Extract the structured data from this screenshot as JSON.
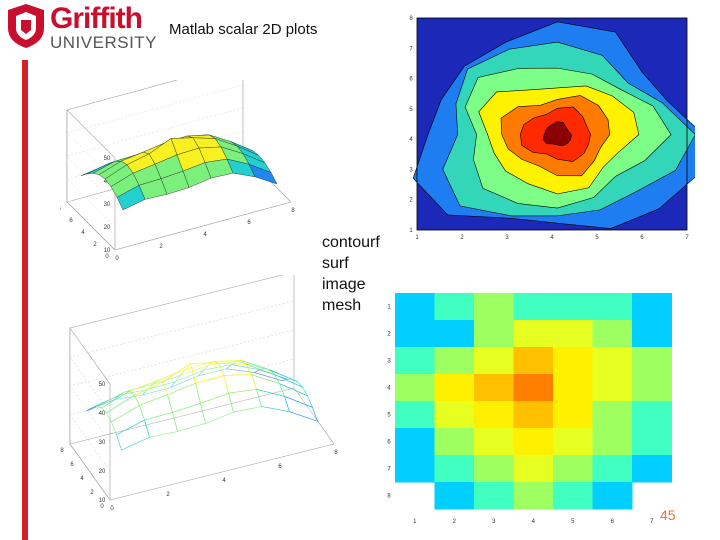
{
  "header": {
    "logo_line1": "Griffith",
    "logo_line2": "UNIVERSITY",
    "title": "Matlab scalar 2D plots"
  },
  "methods": [
    "contourf",
    "surf",
    "image",
    "mesh"
  ],
  "page_number": "45",
  "colors": {
    "brand_red": "#d4202a",
    "page_number": "#e07a30"
  },
  "chart_data": [
    {
      "id": "surf",
      "type": "surface",
      "z_ticks": [
        "10",
        "20",
        "30",
        "40",
        "50"
      ],
      "x_ticks": [
        "0",
        "2",
        "4",
        "6",
        "8"
      ],
      "y_ticks": [
        "0",
        "2",
        "4",
        "6",
        "8"
      ],
      "zlim": [
        10,
        50
      ]
    },
    {
      "id": "contourf",
      "type": "filled-contour",
      "x_ticks": [
        "1",
        "2",
        "3",
        "4",
        "5",
        "6",
        "7"
      ],
      "y_ticks": [
        "1",
        "2",
        "3",
        "4",
        "5",
        "6",
        "7",
        "8"
      ],
      "levels": 6,
      "colormap": [
        "#1c28b8",
        "#1e7df0",
        "#33d6b8",
        "#7dff87",
        "#fff200",
        "#ff7b00",
        "#ff2a00",
        "#8b0000"
      ]
    },
    {
      "id": "mesh",
      "type": "mesh",
      "z_ticks": [
        "10",
        "20",
        "30",
        "40",
        "50"
      ],
      "x_ticks": [
        "0",
        "2",
        "4",
        "6",
        "8"
      ],
      "y_ticks": [
        "0",
        "2",
        "4",
        "6",
        "8"
      ],
      "zlim": [
        10,
        50
      ]
    },
    {
      "id": "image",
      "type": "heatmap",
      "x_ticks": [
        "1",
        "2",
        "3",
        "4",
        "5",
        "6",
        "7"
      ],
      "y_ticks": [
        "1",
        "2",
        "3",
        "4",
        "5",
        "6",
        "7",
        "8"
      ],
      "rows": [
        [
          2,
          3,
          4,
          3,
          3,
          3,
          2
        ],
        [
          2,
          2,
          4,
          5,
          5,
          4,
          2
        ],
        [
          3,
          4,
          5,
          7,
          6,
          5,
          4
        ],
        [
          4,
          6,
          7,
          8,
          6,
          5,
          4
        ],
        [
          3,
          5,
          6,
          7,
          6,
          4,
          3
        ],
        [
          2,
          4,
          5,
          6,
          5,
          4,
          3
        ],
        [
          2,
          3,
          4,
          5,
          4,
          3,
          2
        ],
        [
          null,
          2,
          3,
          4,
          3,
          2,
          null
        ]
      ],
      "cmap": [
        "#0070ff",
        "#00cfff",
        "#40ffc0",
        "#9dff60",
        "#e6ff20",
        "#fff000",
        "#ffc000",
        "#ff8000"
      ]
    }
  ]
}
